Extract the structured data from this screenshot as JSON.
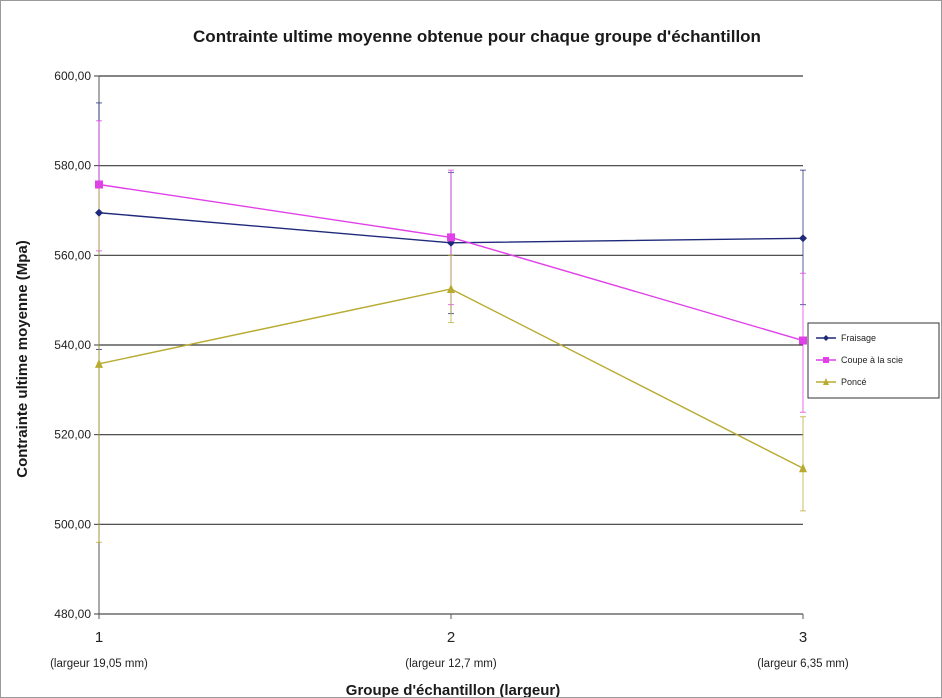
{
  "chart_data": {
    "type": "line",
    "title": "Contrainte ultime moyenne obtenue pour chaque groupe d'échantillon",
    "xlabel": "Groupe d'échantillon (largeur)",
    "ylabel": "Contrainte ultime moyenne (Mpa)",
    "categories": [
      "1",
      "2",
      "3"
    ],
    "category_sublabels": [
      "(largeur 19,05 mm)",
      "(largeur 12,7 mm)",
      "(largeur 6,35 mm)"
    ],
    "y_ticks": [
      "480,00",
      "500,00",
      "520,00",
      "540,00",
      "560,00",
      "580,00",
      "600,00"
    ],
    "ylim": [
      480,
      600
    ],
    "grid": true,
    "legend_position": "right",
    "series": [
      {
        "name": "Fraisage",
        "color": "#1f2a7a",
        "marker": "diamond",
        "values": [
          569.5,
          562.8,
          563.8
        ],
        "error": [
          [
            539,
            594
          ],
          [
            547,
            578.5
          ],
          [
            549,
            579
          ]
        ]
      },
      {
        "name": "Coupe à la scie",
        "color": "#e040e8",
        "marker": "square",
        "values": [
          575.8,
          564.0,
          541.0
        ],
        "error": [
          [
            561,
            590
          ],
          [
            549,
            579
          ],
          [
            525,
            556
          ]
        ]
      },
      {
        "name": "Poncé",
        "color": "#b8ab30",
        "marker": "triangle",
        "values": [
          535.8,
          552.5,
          512.5
        ],
        "error": [
          [
            496,
            575
          ],
          [
            545,
            560
          ],
          [
            503,
            524
          ]
        ]
      }
    ]
  }
}
